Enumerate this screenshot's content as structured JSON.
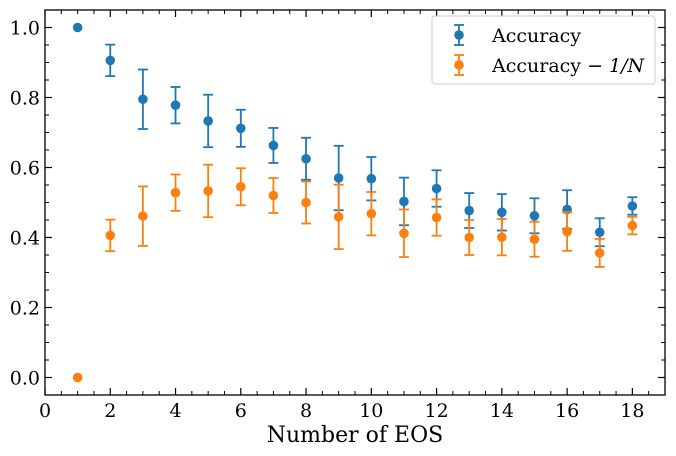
{
  "chart_data": {
    "type": "scatter",
    "title": "",
    "xlabel": "Number of EOS",
    "ylabel": "",
    "xlim": [
      0,
      19
    ],
    "ylim": [
      -0.05,
      1.05
    ],
    "grid": false,
    "legend_position": "top-right",
    "x_ticks": [
      0,
      2,
      4,
      6,
      8,
      10,
      12,
      14,
      16,
      18
    ],
    "x_tick_labels": [
      "0",
      "2",
      "4",
      "6",
      "8",
      "10",
      "12",
      "14",
      "16",
      "18"
    ],
    "y_ticks": [
      0.0,
      0.2,
      0.4,
      0.6,
      0.8,
      1.0
    ],
    "y_tick_labels": [
      "0.0",
      "0.2",
      "0.4",
      "0.6",
      "0.8",
      "1.0"
    ],
    "series": [
      {
        "name": "Accuracy",
        "color": "#1f77b4",
        "x": [
          1,
          2,
          3,
          4,
          5,
          6,
          7,
          8,
          9,
          10,
          11,
          12,
          13,
          14,
          15,
          16,
          17,
          18
        ],
        "y": [
          1.0,
          0.906,
          0.795,
          0.778,
          0.733,
          0.712,
          0.663,
          0.625,
          0.57,
          0.568,
          0.503,
          0.54,
          0.477,
          0.472,
          0.462,
          0.48,
          0.415,
          0.49
        ],
        "err": [
          0,
          0.045,
          0.085,
          0.052,
          0.075,
          0.053,
          0.05,
          0.06,
          0.092,
          0.062,
          0.068,
          0.052,
          0.05,
          0.052,
          0.05,
          0.055,
          0.04,
          0.025
        ]
      },
      {
        "name": "Accuracy − 1/N",
        "name_parts": [
          "Accuracy − ",
          "1/N"
        ],
        "color": "#ff7f0e",
        "x": [
          1,
          2,
          3,
          4,
          5,
          6,
          7,
          8,
          9,
          10,
          11,
          12,
          13,
          14,
          15,
          16,
          17,
          18
        ],
        "y": [
          0.0,
          0.406,
          0.461,
          0.528,
          0.533,
          0.545,
          0.52,
          0.5,
          0.459,
          0.468,
          0.412,
          0.457,
          0.4,
          0.401,
          0.395,
          0.417,
          0.356,
          0.434
        ],
        "err": [
          0,
          0.045,
          0.085,
          0.052,
          0.075,
          0.053,
          0.05,
          0.06,
          0.092,
          0.062,
          0.068,
          0.052,
          0.05,
          0.052,
          0.05,
          0.055,
          0.04,
          0.025
        ]
      }
    ]
  }
}
